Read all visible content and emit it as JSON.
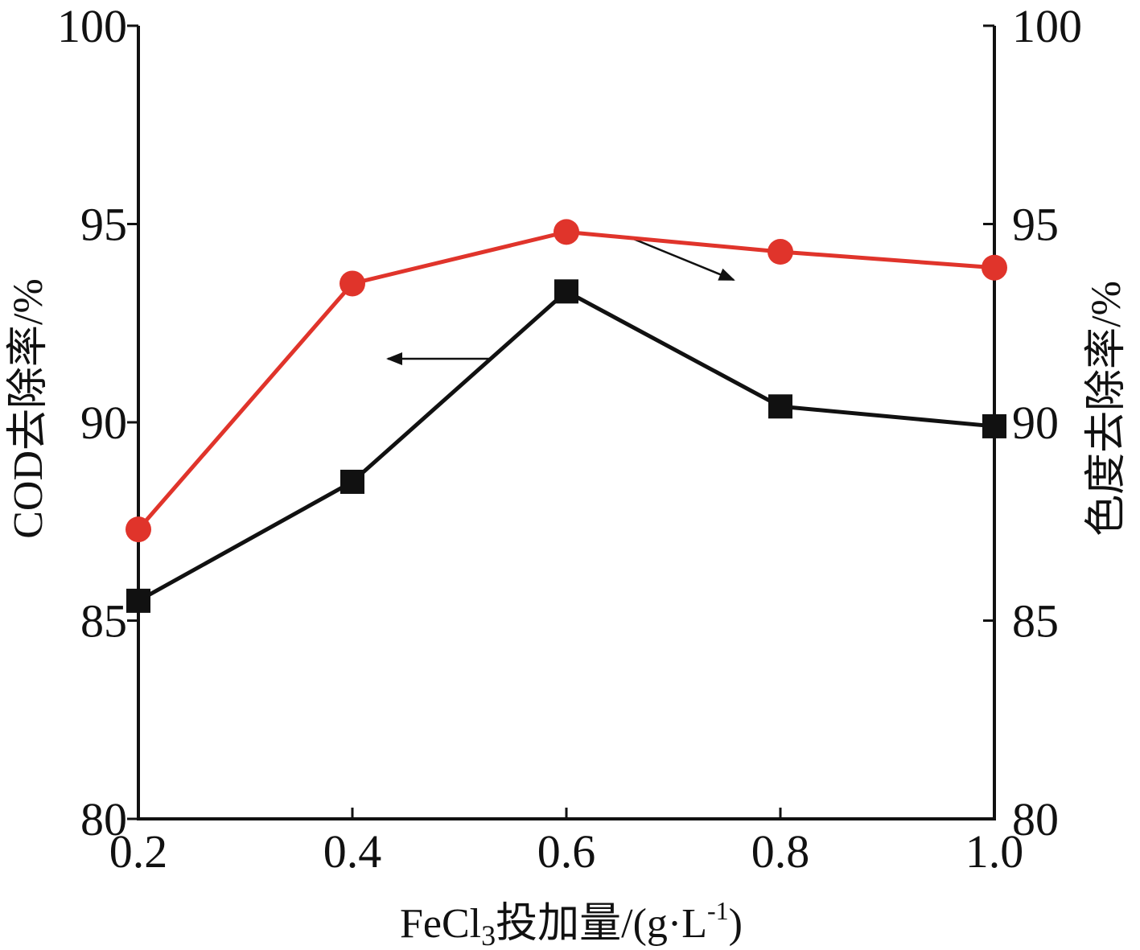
{
  "chart_data": {
    "type": "line",
    "xlabel_main": "FeCl",
    "xlabel_sub": "3",
    "xlabel_rest": "投加量/(g·L",
    "xlabel_sup": "-1",
    "xlabel_close": ")",
    "ylabel_left": "COD去除率/%",
    "ylabel_right": "色度去除率/%",
    "x_ticks": [
      "0.2",
      "0.4",
      "0.6",
      "0.8",
      "1.0"
    ],
    "x_tick_values": [
      0.2,
      0.4,
      0.6,
      0.8,
      1.0
    ],
    "xlim": [
      0.2,
      1.0
    ],
    "y_left_ticks": [
      "80",
      "85",
      "90",
      "95",
      "100"
    ],
    "y_right_ticks": [
      "80",
      "85",
      "90",
      "95",
      "100"
    ],
    "y_tick_values": [
      80,
      85,
      90,
      95,
      100
    ],
    "ylim_left": [
      80,
      100
    ],
    "ylim_right": [
      80,
      100
    ],
    "grid": false,
    "x": [
      0.2,
      0.4,
      0.6,
      0.8,
      1.0
    ],
    "series": [
      {
        "key": "cod",
        "axis": "left",
        "marker": "square",
        "color": "#111111",
        "values": [
          85.5,
          88.5,
          93.3,
          90.4,
          89.9
        ]
      },
      {
        "key": "color",
        "axis": "right",
        "marker": "circle",
        "color": "#e0342b",
        "values": [
          87.3,
          93.5,
          94.8,
          94.3,
          93.9
        ]
      }
    ]
  }
}
